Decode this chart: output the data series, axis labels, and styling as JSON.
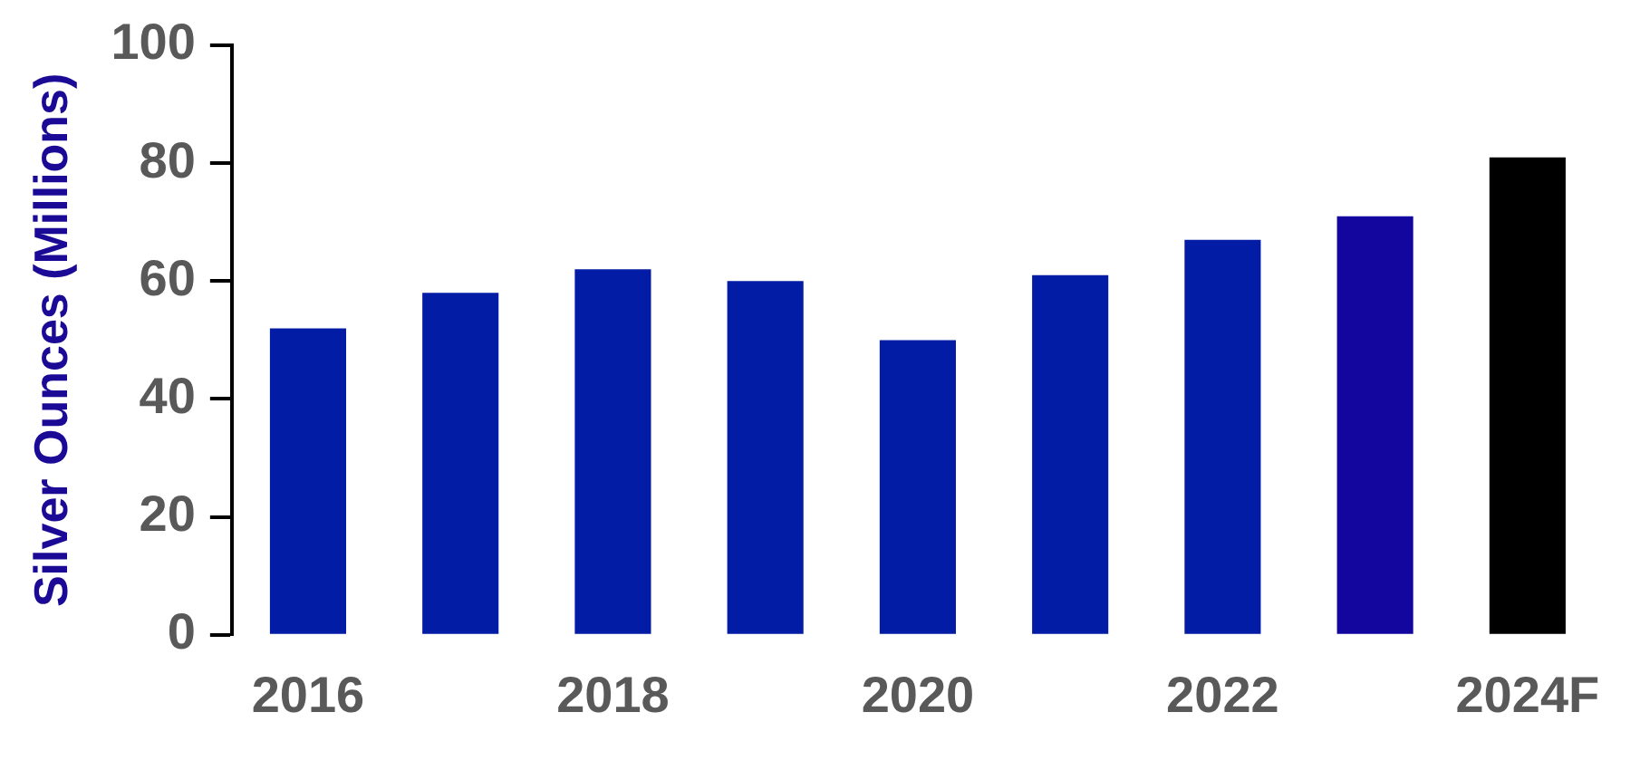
{
  "chart_data": {
    "type": "bar",
    "ylabel": "Silver Ounces (Millions)",
    "categories": [
      "2016",
      null,
      "2018",
      null,
      "2020",
      null,
      "2022",
      null,
      "2024F"
    ],
    "values": [
      52,
      58,
      62,
      60,
      50,
      61,
      67,
      71,
      81
    ],
    "colors": [
      "#021ca5",
      "#021ca5",
      "#021ca5",
      "#021ca5",
      "#021ca5",
      "#021ca5",
      "#021ca5",
      "#12069e",
      "#000000"
    ],
    "ylim": [
      0,
      100
    ],
    "yticks": [
      0,
      20,
      40,
      60,
      80,
      100
    ],
    "grid": false,
    "legend": false
  }
}
